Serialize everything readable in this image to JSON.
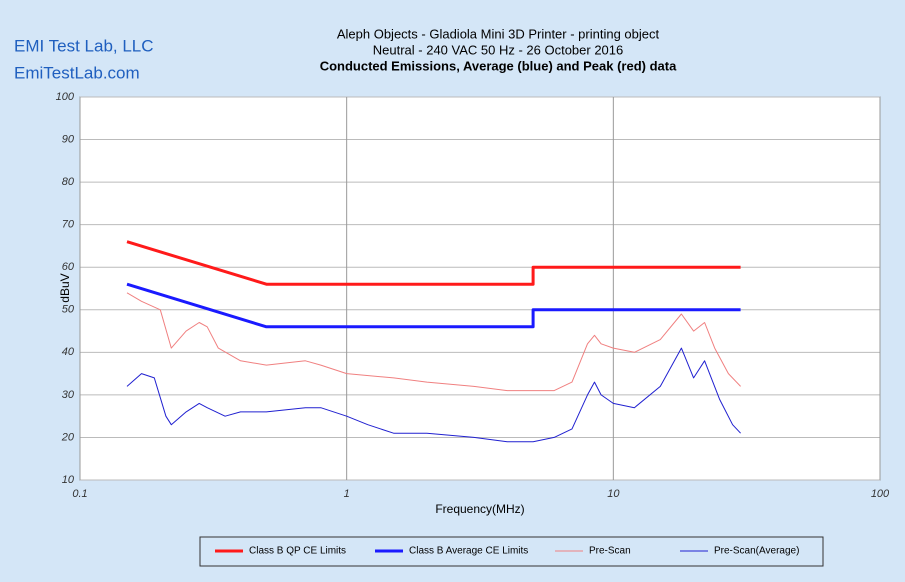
{
  "chart_data": {
    "type": "line",
    "brand": [
      "EMI Test Lab, LLC",
      "EmiTestLab.com"
    ],
    "title": [
      "Aleph Objects - Gladiola Mini 3D Printer - printing object",
      "Neutral -  240 VAC 50 Hz - 26 October 2016",
      "Conducted Emissions, Average (blue) and Peak (red) data"
    ],
    "xlabel": "Frequency(MHz)",
    "ylabel": "dBuV",
    "xscale": "log",
    "xlim": [
      0.1,
      100
    ],
    "ylim": [
      10,
      100
    ],
    "xticks": [
      0.1,
      1,
      10,
      100
    ],
    "yticks": [
      10,
      20,
      30,
      40,
      50,
      60,
      70,
      80,
      90,
      100
    ],
    "grid": true,
    "legend": "bottom",
    "series": [
      {
        "name": "Class B QP CE Limits",
        "color": "#ff1a1a",
        "width": 3,
        "x": [
          0.15,
          0.5,
          5,
          5,
          30
        ],
        "values": [
          66,
          56,
          56,
          60,
          60
        ]
      },
      {
        "name": "Class B Average CE Limits",
        "color": "#1a1aff",
        "width": 3,
        "x": [
          0.15,
          0.5,
          5,
          5,
          30
        ],
        "values": [
          56,
          46,
          46,
          50,
          50
        ]
      },
      {
        "name": "Pre-Scan",
        "color": "#f08080",
        "width": 1,
        "x": [
          0.15,
          0.17,
          0.2,
          0.22,
          0.25,
          0.28,
          0.3,
          0.33,
          0.4,
          0.5,
          0.7,
          0.8,
          1,
          1.5,
          2,
          3,
          4,
          5,
          6,
          7,
          8,
          8.5,
          9,
          10,
          12,
          15,
          18,
          20,
          22,
          24,
          27,
          30
        ],
        "values": [
          54,
          52,
          50,
          41,
          45,
          47,
          46,
          41,
          38,
          37,
          38,
          37,
          35,
          34,
          33,
          32,
          31,
          31,
          31,
          33,
          42,
          44,
          42,
          41,
          40,
          43,
          49,
          45,
          47,
          41,
          35,
          32
        ]
      },
      {
        "name": "Pre-Scan(Average)",
        "color": "#2020d0",
        "width": 1,
        "x": [
          0.15,
          0.17,
          0.19,
          0.21,
          0.22,
          0.25,
          0.28,
          0.3,
          0.35,
          0.4,
          0.5,
          0.7,
          0.8,
          1,
          1.2,
          1.5,
          2,
          3,
          4,
          5,
          6,
          7,
          8,
          8.5,
          9,
          10,
          12,
          15,
          18,
          20,
          22,
          25,
          28,
          30
        ],
        "values": [
          32,
          35,
          34,
          25,
          23,
          26,
          28,
          27,
          25,
          26,
          26,
          27,
          27,
          25,
          23,
          21,
          21,
          20,
          19,
          19,
          20,
          22,
          30,
          33,
          30,
          28,
          27,
          32,
          41,
          34,
          38,
          29,
          23,
          21
        ]
      }
    ]
  }
}
